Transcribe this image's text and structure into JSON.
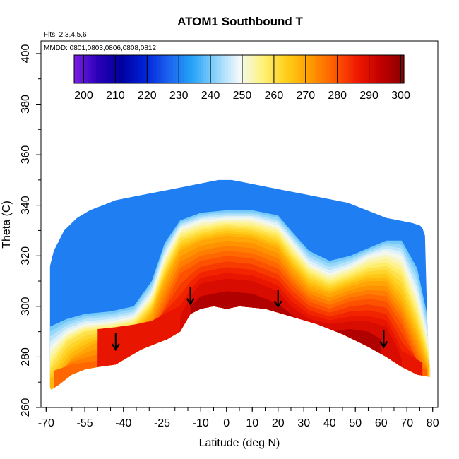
{
  "chart_data": {
    "type": "heatmap",
    "title": "ATOM1 Southbound T",
    "subtitle_flights": "Flts: 2,3,4,5,6",
    "subtitle_dates": "MMDD: 0801,0803,0806,0808,0812",
    "xlabel": "Latitude (deg N)",
    "ylabel": "Theta (C)",
    "xlim": [
      -72,
      82
    ],
    "ylim": [
      260,
      405
    ],
    "x_ticks": [
      -70,
      -55,
      -40,
      -25,
      -10,
      0,
      10,
      20,
      30,
      40,
      50,
      60,
      70,
      80
    ],
    "y_ticks": [
      260,
      280,
      300,
      320,
      340,
      360,
      380,
      400
    ],
    "colorbar": {
      "range": [
        197,
        301
      ],
      "ticks": [
        200,
        210,
        220,
        230,
        240,
        250,
        260,
        270,
        280,
        290,
        300
      ],
      "colors": [
        "#7b1fe6",
        "#2a00b8",
        "#00009e",
        "#0022d8",
        "#1a62ee",
        "#26a2f8",
        "#8ad3fb",
        "#f2f9fb",
        "#fff27a",
        "#ffcf1a",
        "#ff9c00",
        "#ff5e00",
        "#f01a00",
        "#c20000",
        "#8a0000"
      ]
    },
    "domain_top": [
      [
        -68.5,
        316
      ],
      [
        -67,
        322
      ],
      [
        -63,
        330
      ],
      [
        -58,
        335
      ],
      [
        -53,
        338
      ],
      [
        -48,
        340
      ],
      [
        -43,
        342
      ],
      [
        -38,
        343
      ],
      [
        -33,
        344
      ],
      [
        -28,
        345
      ],
      [
        -23,
        346
      ],
      [
        -18,
        347
      ],
      [
        -13,
        348
      ],
      [
        -8,
        349
      ],
      [
        -3,
        350
      ],
      [
        2,
        350
      ],
      [
        7,
        349
      ],
      [
        12,
        348
      ],
      [
        17,
        347
      ],
      [
        22,
        346
      ],
      [
        27,
        345
      ],
      [
        32,
        344
      ],
      [
        37,
        343
      ],
      [
        42,
        342
      ],
      [
        47,
        341
      ],
      [
        52,
        339
      ],
      [
        57,
        337
      ],
      [
        62,
        335
      ],
      [
        67,
        334
      ],
      [
        72,
        333
      ],
      [
        75,
        332
      ],
      [
        76,
        331
      ],
      [
        77,
        328
      ],
      [
        78,
        290
      ],
      [
        79,
        275
      ],
      [
        79,
        272
      ]
    ],
    "domain_bottom": [
      [
        79,
        272
      ],
      [
        74,
        273
      ],
      [
        68,
        276
      ],
      [
        62,
        280
      ],
      [
        55,
        284
      ],
      [
        45,
        289
      ],
      [
        35,
        293
      ],
      [
        25,
        296
      ],
      [
        15,
        299
      ],
      [
        5,
        300
      ],
      [
        0,
        299
      ],
      [
        -5,
        300
      ],
      [
        -10,
        299
      ],
      [
        -14,
        297
      ],
      [
        -18,
        290
      ],
      [
        -23,
        287
      ],
      [
        -28,
        285
      ],
      [
        -33,
        283
      ],
      [
        -38,
        280
      ],
      [
        -43,
        277
      ],
      [
        -50,
        276
      ],
      [
        -55,
        275
      ],
      [
        -60,
        273
      ],
      [
        -65,
        269
      ],
      [
        -68,
        267
      ],
      [
        -68.5,
        268
      ]
    ],
    "isotherms": [
      {
        "temp": 240,
        "points": [
          [
            -68.5,
            292
          ],
          [
            -62,
            295
          ],
          [
            -55,
            297
          ],
          [
            -45,
            298
          ],
          [
            -36,
            300
          ],
          [
            -29,
            310
          ],
          [
            -24,
            325
          ],
          [
            -18,
            334
          ],
          [
            -10,
            337
          ],
          [
            0,
            338
          ],
          [
            10,
            338
          ],
          [
            20,
            336
          ],
          [
            25,
            330
          ],
          [
            32,
            322
          ],
          [
            40,
            318
          ],
          [
            48,
            320
          ],
          [
            55,
            323
          ],
          [
            62,
            326
          ],
          [
            68,
            326
          ],
          [
            74,
            315
          ],
          [
            78,
            296
          ],
          [
            79,
            285
          ]
        ]
      },
      {
        "temp": 250,
        "points": [
          [
            -68.5,
            284
          ],
          [
            -62,
            290
          ],
          [
            -55,
            293
          ],
          [
            -45,
            294
          ],
          [
            -36,
            296
          ],
          [
            -29,
            305
          ],
          [
            -24,
            320
          ],
          [
            -18,
            331
          ],
          [
            -10,
            334
          ],
          [
            0,
            335
          ],
          [
            10,
            335
          ],
          [
            20,
            332
          ],
          [
            25,
            326
          ],
          [
            32,
            317
          ],
          [
            40,
            313
          ],
          [
            48,
            316
          ],
          [
            55,
            320
          ],
          [
            62,
            322
          ],
          [
            68,
            320
          ],
          [
            74,
            305
          ],
          [
            78,
            288
          ],
          [
            79,
            280
          ]
        ]
      },
      {
        "temp": 260,
        "points": [
          [
            -68.5,
            276
          ],
          [
            -62,
            286
          ],
          [
            -55,
            290
          ],
          [
            -45,
            291
          ],
          [
            -36,
            293
          ],
          [
            -29,
            301
          ],
          [
            -24,
            315
          ],
          [
            -18,
            327
          ],
          [
            -10,
            330
          ],
          [
            0,
            332
          ],
          [
            10,
            331
          ],
          [
            20,
            328
          ],
          [
            25,
            321
          ],
          [
            32,
            313
          ],
          [
            40,
            309
          ],
          [
            48,
            312
          ],
          [
            55,
            315
          ],
          [
            62,
            316
          ],
          [
            68,
            312
          ],
          [
            74,
            296
          ],
          [
            78,
            282
          ],
          [
            79,
            276
          ]
        ]
      },
      {
        "temp": 270,
        "points": [
          [
            -67,
            270
          ],
          [
            -60,
            280
          ],
          [
            -52,
            285
          ],
          [
            -44,
            287
          ],
          [
            -36,
            289
          ],
          [
            -29,
            297
          ],
          [
            -24,
            310
          ],
          [
            -18,
            322
          ],
          [
            -10,
            326
          ],
          [
            0,
            328
          ],
          [
            10,
            327
          ],
          [
            20,
            323
          ],
          [
            25,
            316
          ],
          [
            32,
            308
          ],
          [
            40,
            305
          ],
          [
            48,
            308
          ],
          [
            55,
            310
          ],
          [
            62,
            310
          ],
          [
            68,
            302
          ],
          [
            74,
            288
          ],
          [
            78,
            276
          ]
        ]
      },
      {
        "temp": 280,
        "points": [
          [
            -50,
            276
          ],
          [
            -43,
            279
          ],
          [
            -36,
            283
          ],
          [
            -29,
            289
          ],
          [
            -24,
            300
          ],
          [
            -18,
            313
          ],
          [
            -10,
            318
          ],
          [
            0,
            320
          ],
          [
            10,
            319
          ],
          [
            20,
            315
          ],
          [
            25,
            309
          ],
          [
            32,
            302
          ],
          [
            40,
            299
          ],
          [
            48,
            302
          ],
          [
            55,
            303
          ],
          [
            62,
            302
          ],
          [
            68,
            293
          ],
          [
            73,
            281
          ],
          [
            76,
            274
          ]
        ]
      },
      {
        "temp": 290,
        "points": [
          [
            -18,
            296
          ],
          [
            -14,
            304
          ],
          [
            -10,
            309
          ],
          [
            0,
            311
          ],
          [
            10,
            310
          ],
          [
            20,
            306
          ],
          [
            25,
            300
          ],
          [
            32,
            295
          ],
          [
            40,
            293
          ],
          [
            48,
            294
          ],
          [
            55,
            294
          ],
          [
            62,
            292
          ],
          [
            66,
            284
          ],
          [
            68,
            279
          ]
        ]
      }
    ],
    "arrows": [
      [
        -43,
        284
      ],
      [
        -14,
        302
      ],
      [
        20,
        301
      ],
      [
        61,
        285
      ]
    ]
  }
}
